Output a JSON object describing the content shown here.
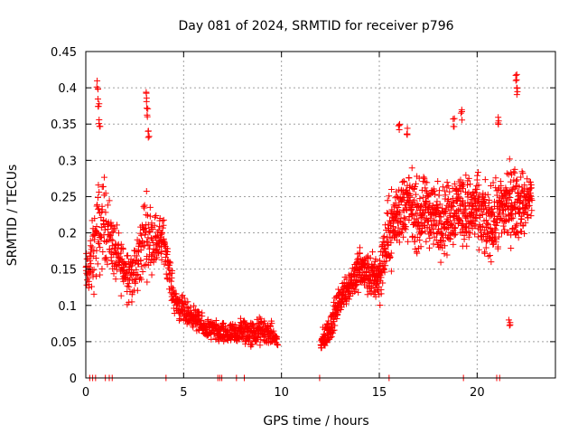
{
  "chart_data": {
    "type": "scatter",
    "title": "Day 081 of 2024, SRMTID for receiver p796",
    "xlabel": "GPS time / hours",
    "ylabel": "SRMTID / TECUs",
    "xlim": [
      0,
      24
    ],
    "ylim": [
      0,
      0.45
    ],
    "x_ticks": [
      0,
      5,
      10,
      15,
      20
    ],
    "x_tick_labels": [
      "0",
      "5",
      "10",
      "15",
      "20"
    ],
    "y_ticks": [
      0,
      0.05,
      0.1,
      0.15,
      0.2,
      0.25,
      0.3,
      0.35,
      0.4,
      0.45
    ],
    "y_tick_labels": [
      "0",
      "0.05",
      "0.1",
      "0.15",
      "0.2",
      "0.25",
      "0.3",
      "0.35",
      "0.4",
      "0.45"
    ],
    "grid": true,
    "marker": "plus",
    "series": [
      {
        "name": "SRMTID",
        "color": "#ff0000",
        "trend": [
          [
            0.0,
            0.14,
            0.03
          ],
          [
            0.3,
            0.16,
            0.05
          ],
          [
            0.6,
            0.2,
            0.07
          ],
          [
            1.0,
            0.22,
            0.06
          ],
          [
            1.5,
            0.17,
            0.04
          ],
          [
            2.0,
            0.15,
            0.04
          ],
          [
            2.5,
            0.14,
            0.04
          ],
          [
            3.0,
            0.2,
            0.06
          ],
          [
            3.5,
            0.19,
            0.04
          ],
          [
            4.0,
            0.19,
            0.03
          ],
          [
            4.5,
            0.11,
            0.02
          ],
          [
            5.0,
            0.09,
            0.02
          ],
          [
            5.5,
            0.085,
            0.015
          ],
          [
            6.0,
            0.07,
            0.015
          ],
          [
            6.5,
            0.065,
            0.015
          ],
          [
            7.0,
            0.06,
            0.015
          ],
          [
            7.5,
            0.06,
            0.015
          ],
          [
            8.0,
            0.065,
            0.02
          ],
          [
            8.5,
            0.06,
            0.02
          ],
          [
            9.0,
            0.065,
            0.02
          ],
          [
            9.5,
            0.06,
            0.015
          ],
          [
            9.8,
            0.05,
            0.01
          ]
        ],
        "trend_2": [
          [
            12.0,
            0.045,
            0.015
          ],
          [
            12.5,
            0.07,
            0.02
          ],
          [
            13.0,
            0.11,
            0.02
          ],
          [
            13.5,
            0.13,
            0.025
          ],
          [
            14.0,
            0.15,
            0.03
          ],
          [
            14.5,
            0.14,
            0.03
          ],
          [
            15.0,
            0.14,
            0.04
          ],
          [
            15.5,
            0.2,
            0.05
          ],
          [
            16.0,
            0.23,
            0.05
          ],
          [
            16.5,
            0.24,
            0.05
          ],
          [
            17.0,
            0.22,
            0.05
          ],
          [
            17.5,
            0.23,
            0.05
          ],
          [
            18.0,
            0.22,
            0.05
          ],
          [
            18.5,
            0.22,
            0.05
          ],
          [
            19.0,
            0.24,
            0.05
          ],
          [
            19.5,
            0.23,
            0.05
          ],
          [
            20.0,
            0.23,
            0.05
          ],
          [
            20.5,
            0.21,
            0.05
          ],
          [
            21.0,
            0.22,
            0.05
          ],
          [
            21.5,
            0.24,
            0.06
          ],
          [
            22.0,
            0.24,
            0.05
          ],
          [
            22.5,
            0.24,
            0.04
          ],
          [
            22.8,
            0.25,
            0.03
          ]
        ],
        "peaks": [
          [
            0.6,
            0.41
          ],
          [
            0.65,
            0.385
          ],
          [
            0.7,
            0.36
          ],
          [
            3.1,
            0.395
          ],
          [
            3.15,
            0.375
          ],
          [
            3.2,
            0.345
          ],
          [
            18.8,
            0.36
          ],
          [
            19.2,
            0.37
          ],
          [
            21.1,
            0.36
          ],
          [
            22.0,
            0.42
          ],
          [
            22.05,
            0.405
          ],
          [
            21.65,
            0.085
          ],
          [
            16.0,
            0.35
          ],
          [
            16.4,
            0.345
          ]
        ],
        "zero_x": [
          0.2,
          0.35,
          0.5,
          1.0,
          1.2,
          1.35,
          4.1,
          6.75,
          6.85,
          6.95,
          7.7,
          8.1,
          11.95,
          15.5,
          19.3,
          21.0,
          21.15
        ]
      }
    ]
  }
}
